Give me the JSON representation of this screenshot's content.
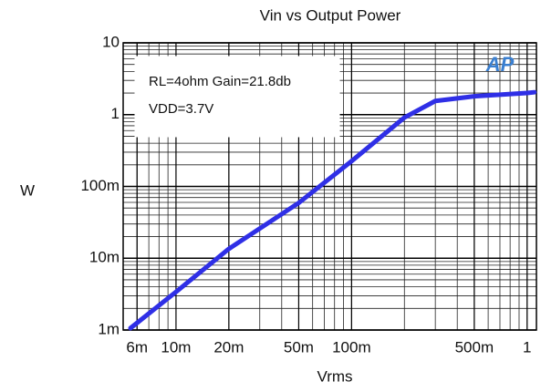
{
  "chart_data": {
    "type": "line",
    "title": "Vin vs Output Power",
    "xlabel": "Vrms",
    "ylabel": "W",
    "annotations": [
      "RL=4ohm Gain=21.8db",
      "VDD=3.7V"
    ],
    "logo": "AP",
    "x": [
      0.0055,
      0.01,
      0.02,
      0.05,
      0.1,
      0.2,
      0.3,
      0.5,
      1,
      1.1
    ],
    "series": [
      {
        "name": "Output Power",
        "color": "#2f2fe6",
        "values": [
          0.00106,
          0.0034,
          0.0135,
          0.059,
          0.225,
          0.91,
          1.55,
          1.8,
          2.0,
          2.05
        ]
      }
    ],
    "xlim": [
      0.005,
      1.13
    ],
    "ylim": [
      0.001,
      10
    ],
    "xticks": [
      {
        "value": 0.006,
        "label": "6m"
      },
      {
        "value": 0.01,
        "label": "10m"
      },
      {
        "value": 0.02,
        "label": "20m"
      },
      {
        "value": 0.05,
        "label": "50m"
      },
      {
        "value": 0.1,
        "label": "100m"
      },
      {
        "value": 0.5,
        "label": "500m"
      },
      1
    ],
    "yticks": [
      {
        "value": 0.001,
        "label": "1m"
      },
      {
        "value": 0.01,
        "label": "10m"
      },
      {
        "value": 0.1,
        "label": "100m"
      },
      1,
      10
    ],
    "xscale": "log",
    "yscale": "log",
    "grid": true
  }
}
